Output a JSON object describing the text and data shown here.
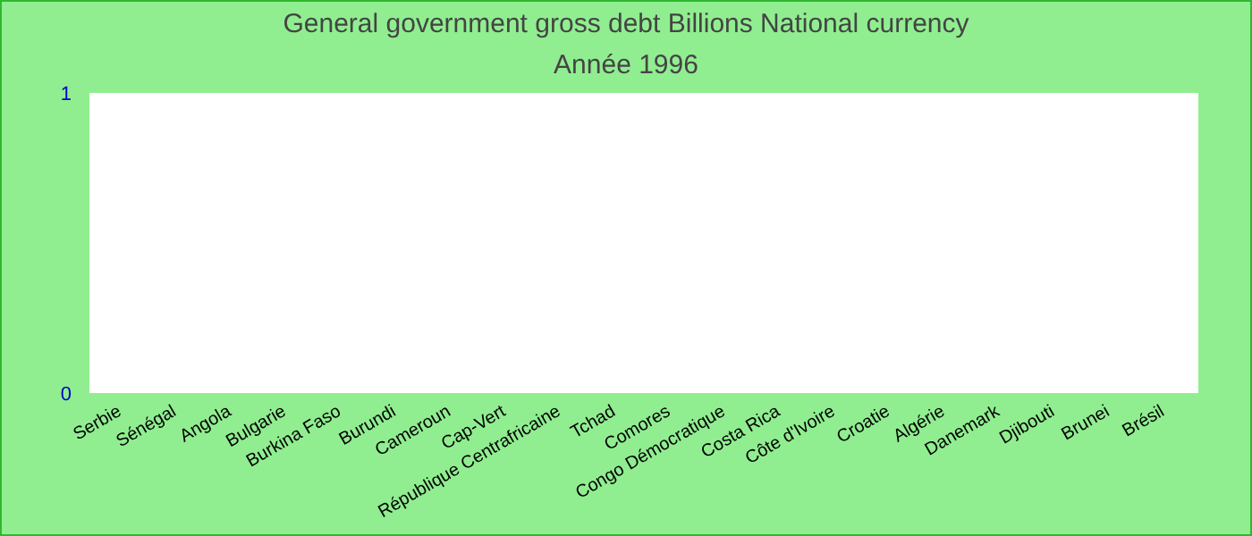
{
  "chart_data": {
    "type": "bar",
    "title": "General government gross debt Billions National currency",
    "subtitle": "Année 1996",
    "categories": [
      "Serbie",
      "Sénégal",
      "Angola",
      "Bulgarie",
      "Burkina Faso",
      "Burundi",
      "Cameroun",
      "Cap-Vert",
      "République Centrafricaine",
      "Tchad",
      "Comores",
      "Congo Démocratique",
      "Costa Rica",
      "Côte d'Ivoire",
      "Croatie",
      "Algérie",
      "Danemark",
      "Djibouti",
      "Brunei",
      "Brésil"
    ],
    "values": [
      null,
      null,
      null,
      null,
      null,
      null,
      null,
      null,
      null,
      null,
      null,
      null,
      null,
      null,
      null,
      null,
      null,
      null,
      null,
      null
    ],
    "ylim": [
      0,
      1
    ],
    "yticks": [
      0,
      1
    ]
  }
}
